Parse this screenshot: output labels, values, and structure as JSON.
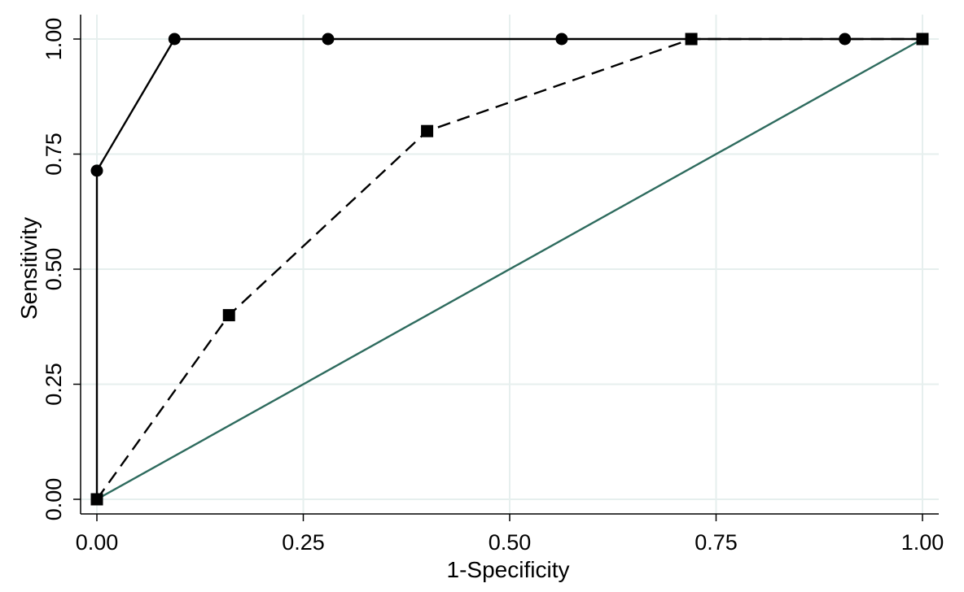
{
  "chart_data": {
    "type": "line",
    "xlabel": "1-Specificity",
    "ylabel": "Sensitivity",
    "xlim": [
      0,
      1
    ],
    "ylim": [
      0,
      1
    ],
    "x_ticks": [
      "0.00",
      "0.25",
      "0.50",
      "0.75",
      "1.00"
    ],
    "y_ticks": [
      "0.00",
      "0.25",
      "0.50",
      "0.75",
      "1.00"
    ],
    "grid": true,
    "legend": "none",
    "series": [
      {
        "style": "solid",
        "marker": "circle",
        "color": "#000000",
        "x": [
          0.0,
          0.0,
          0.094,
          0.28,
          0.563,
          0.906,
          1.0
        ],
        "y": [
          0.0,
          0.714,
          1.0,
          1.0,
          1.0,
          1.0,
          1.0
        ]
      },
      {
        "style": "dashed",
        "marker": "square",
        "color": "#000000",
        "x": [
          0.0,
          0.16,
          0.4,
          0.72,
          1.0
        ],
        "y": [
          0.0,
          0.4,
          0.8,
          1.0,
          1.0
        ]
      },
      {
        "style": "solid",
        "marker": "none",
        "color": "#2e6b5e",
        "x": [
          0.0,
          1.0
        ],
        "y": [
          0.0,
          1.0
        ]
      }
    ],
    "grid_color": "#e6efee"
  }
}
